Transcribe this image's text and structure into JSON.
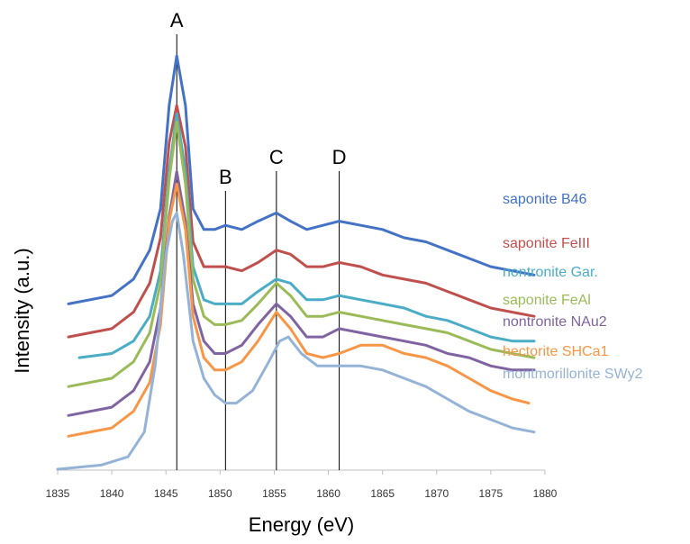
{
  "chart_data": {
    "type": "line",
    "title": "",
    "xlabel": "Energy (eV)",
    "ylabel": "Intensity (a.u.)",
    "xlim": [
      1835,
      1880
    ],
    "xticks": [
      1835,
      1840,
      1845,
      1850,
      1855,
      1860,
      1865,
      1870,
      1875,
      1880
    ],
    "y_ticks_shown": false,
    "grid": false,
    "legend": "labels-right-of-curves",
    "peak_markers": [
      {
        "label": "A",
        "x": 1846.0
      },
      {
        "label": "B",
        "x": 1850.5
      },
      {
        "label": "C",
        "x": 1855.2
      },
      {
        "label": "D",
        "x": 1861.0
      }
    ],
    "series": [
      {
        "name": "saponite B46",
        "color": "#4472C4",
        "x": [
          1836,
          1840,
          1842,
          1843.5,
          1844.5,
          1845.3,
          1846,
          1846.8,
          1847.5,
          1848.5,
          1849.5,
          1850.5,
          1852,
          1853.5,
          1855.2,
          1856.5,
          1858,
          1859.5,
          1861,
          1863,
          1865,
          1867,
          1869,
          1871,
          1873,
          1875,
          1877,
          1879
        ],
        "y": [
          0.4,
          0.42,
          0.46,
          0.53,
          0.63,
          0.88,
          1.0,
          0.88,
          0.63,
          0.58,
          0.58,
          0.59,
          0.58,
          0.6,
          0.62,
          0.6,
          0.58,
          0.59,
          0.6,
          0.59,
          0.58,
          0.56,
          0.55,
          0.53,
          0.51,
          0.49,
          0.48,
          0.47
        ]
      },
      {
        "name": "saponite FeIII",
        "color": "#C0504D",
        "x": [
          1836,
          1840,
          1842,
          1843.5,
          1844.5,
          1845.3,
          1846,
          1846.8,
          1847.5,
          1848.5,
          1849.5,
          1850.5,
          1852,
          1853.5,
          1855.2,
          1856.5,
          1858,
          1859.5,
          1861,
          1863,
          1865,
          1867,
          1869,
          1871,
          1873,
          1875,
          1877,
          1879
        ],
        "y": [
          0.32,
          0.34,
          0.38,
          0.45,
          0.56,
          0.79,
          0.88,
          0.78,
          0.55,
          0.49,
          0.49,
          0.49,
          0.48,
          0.5,
          0.53,
          0.52,
          0.49,
          0.49,
          0.5,
          0.49,
          0.47,
          0.46,
          0.45,
          0.43,
          0.41,
          0.39,
          0.38,
          0.37
        ]
      },
      {
        "name": "nontronite Gar.",
        "color": "#4BACC6",
        "x": [
          1837,
          1840,
          1842,
          1843.5,
          1844.5,
          1845.3,
          1846,
          1846.8,
          1847.5,
          1848.5,
          1849.5,
          1850.5,
          1852,
          1853.5,
          1855.2,
          1856.5,
          1858,
          1859.5,
          1861,
          1863,
          1865,
          1867,
          1869,
          1871,
          1873,
          1875,
          1877,
          1879
        ],
        "y": [
          0.27,
          0.28,
          0.31,
          0.37,
          0.48,
          0.72,
          0.86,
          0.72,
          0.49,
          0.41,
          0.4,
          0.4,
          0.4,
          0.43,
          0.46,
          0.45,
          0.41,
          0.41,
          0.42,
          0.41,
          0.4,
          0.39,
          0.37,
          0.36,
          0.34,
          0.32,
          0.31,
          0.31
        ]
      },
      {
        "name": "saponite FeAl",
        "color": "#9BBB59",
        "x": [
          1836,
          1840,
          1842,
          1843.5,
          1844.5,
          1845.3,
          1846,
          1846.8,
          1847.5,
          1848.5,
          1849.5,
          1850.5,
          1852,
          1853.5,
          1855.2,
          1856.5,
          1858,
          1859.5,
          1861,
          1863,
          1865,
          1867,
          1869,
          1871,
          1873,
          1875,
          1877,
          1879
        ],
        "y": [
          0.2,
          0.22,
          0.26,
          0.33,
          0.45,
          0.7,
          0.84,
          0.69,
          0.46,
          0.37,
          0.35,
          0.35,
          0.36,
          0.4,
          0.45,
          0.42,
          0.37,
          0.37,
          0.38,
          0.37,
          0.36,
          0.35,
          0.34,
          0.33,
          0.31,
          0.29,
          0.28,
          0.27
        ]
      },
      {
        "name": "nontronite NAu2",
        "color": "#8064A2",
        "x": [
          1836,
          1840,
          1842,
          1843.5,
          1844.5,
          1845.3,
          1846,
          1846.8,
          1847.5,
          1848.5,
          1849.5,
          1850.5,
          1852,
          1853.5,
          1855.2,
          1856.5,
          1858,
          1859.5,
          1861,
          1863,
          1865,
          1867,
          1869,
          1871,
          1873,
          1875,
          1877,
          1879
        ],
        "y": [
          0.13,
          0.15,
          0.19,
          0.26,
          0.39,
          0.61,
          0.72,
          0.6,
          0.4,
          0.31,
          0.28,
          0.28,
          0.3,
          0.35,
          0.4,
          0.37,
          0.32,
          0.32,
          0.34,
          0.33,
          0.32,
          0.31,
          0.3,
          0.28,
          0.27,
          0.25,
          0.24,
          0.24
        ]
      },
      {
        "name": "hectorite SHCa1",
        "color": "#F79646",
        "x": [
          1836,
          1840,
          1842,
          1843.5,
          1844.5,
          1845.3,
          1846,
          1846.8,
          1847.5,
          1848.5,
          1849.5,
          1850.5,
          1852,
          1853.5,
          1855.2,
          1856.5,
          1858,
          1859.5,
          1861,
          1863,
          1865,
          1867,
          1869,
          1871,
          1873,
          1875,
          1877,
          1878.5
        ],
        "y": [
          0.08,
          0.1,
          0.14,
          0.21,
          0.35,
          0.6,
          0.69,
          0.58,
          0.37,
          0.27,
          0.24,
          0.24,
          0.26,
          0.31,
          0.38,
          0.34,
          0.28,
          0.27,
          0.28,
          0.3,
          0.3,
          0.28,
          0.27,
          0.25,
          0.22,
          0.19,
          0.17,
          0.16
        ]
      },
      {
        "name": "montmorillonite SWy2",
        "color": "#95B3D7",
        "x": [
          1835,
          1839,
          1841.5,
          1843,
          1844,
          1845,
          1845.6,
          1846,
          1846.6,
          1847.5,
          1848.5,
          1849.5,
          1850.5,
          1851.5,
          1853,
          1854.5,
          1855.5,
          1856.3,
          1857.5,
          1859,
          1861,
          1863,
          1865,
          1867,
          1869,
          1871,
          1873,
          1875,
          1877,
          1879
        ],
        "y": [
          0.0,
          0.01,
          0.03,
          0.09,
          0.25,
          0.52,
          0.6,
          0.62,
          0.52,
          0.31,
          0.22,
          0.18,
          0.16,
          0.16,
          0.19,
          0.26,
          0.31,
          0.32,
          0.28,
          0.25,
          0.25,
          0.25,
          0.24,
          0.22,
          0.2,
          0.17,
          0.14,
          0.12,
          0.1,
          0.09
        ]
      }
    ]
  }
}
